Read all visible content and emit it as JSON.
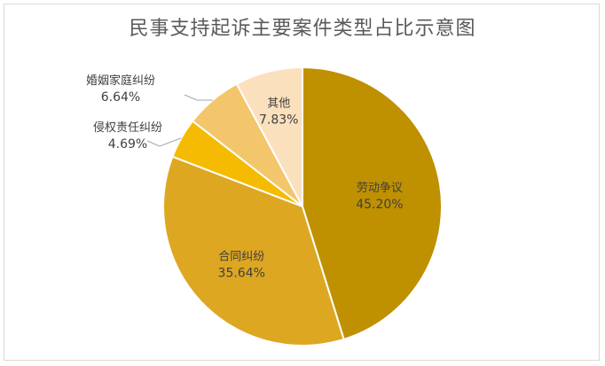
{
  "chart_data": {
    "type": "pie",
    "title": "民事支持起诉主要案件类型占比示意图",
    "slices": [
      {
        "label": "劳动争议",
        "value": 45.2,
        "value_text": "45.20%",
        "color": "#bf9000"
      },
      {
        "label": "合同纠纷",
        "value": 35.64,
        "value_text": "35.64%",
        "color": "#dda722"
      },
      {
        "label": "侵权责任纠纷",
        "value": 4.69,
        "value_text": "4.69%",
        "color": "#f5bb02"
      },
      {
        "label": "婚姻家庭纠纷",
        "value": 6.64,
        "value_text": "6.64%",
        "color": "#f3c66c"
      },
      {
        "label": "其他",
        "value": 7.83,
        "value_text": "7.83%",
        "color": "#fbe0bd"
      }
    ],
    "start": "12 o'clock",
    "direction": "clockwise",
    "legend": "none"
  }
}
